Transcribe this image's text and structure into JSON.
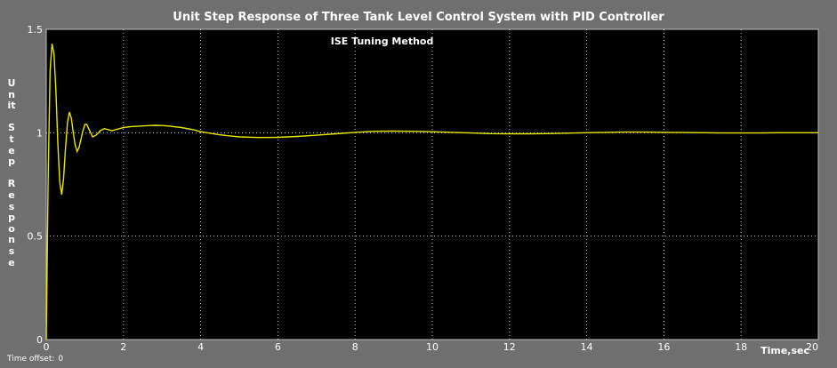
{
  "chart_data": {
    "type": "line",
    "title": "Unit Step Response of Three Tank Level Control System with PID Controller",
    "subtitle": "ISE Tuning Method",
    "xlabel": "Time,sec",
    "ylabel": "Unit Step Response",
    "ylabel_vertical": "U\nn\nit\n\nS\nt\ne\np\n\nR\ne\ns\np\no\nn\ns\ne",
    "xlim": [
      0,
      20
    ],
    "ylim": [
      0,
      1.5
    ],
    "xticks": [
      "0",
      "2",
      "4",
      "6",
      "8",
      "10",
      "12",
      "14",
      "16",
      "18",
      "20"
    ],
    "yticks": [
      "0",
      "0.5",
      "1",
      "1.5"
    ],
    "grid": true,
    "series": [
      {
        "color": "#e6e600",
        "x": [
          0,
          0.05,
          0.1,
          0.15,
          0.2,
          0.25,
          0.3,
          0.35,
          0.4,
          0.45,
          0.5,
          0.55,
          0.6,
          0.65,
          0.7,
          0.75,
          0.8,
          0.85,
          0.9,
          0.95,
          1.0,
          1.05,
          1.1,
          1.15,
          1.2,
          1.3,
          1.4,
          1.5,
          1.6,
          1.7,
          1.8,
          1.9,
          2.0,
          2.2,
          2.4,
          2.6,
          2.8,
          3.0,
          3.2,
          3.5,
          3.8,
          4.0,
          4.5,
          5.0,
          5.5,
          6.0,
          6.5,
          7.0,
          7.5,
          8.0,
          8.5,
          9.0,
          9.5,
          10.0,
          10.5,
          11.0,
          11.5,
          12.0,
          12.5,
          13.0,
          13.5,
          14.0,
          14.5,
          15.0,
          15.5,
          16.0,
          16.5,
          17.0,
          17.5,
          18.0,
          18.5,
          19.0,
          19.5,
          20.0
        ],
        "y": [
          0.0,
          0.8,
          1.3,
          1.43,
          1.38,
          1.2,
          0.95,
          0.76,
          0.7,
          0.78,
          0.93,
          1.05,
          1.1,
          1.07,
          1.0,
          0.94,
          0.91,
          0.93,
          0.97,
          1.01,
          1.04,
          1.04,
          1.02,
          1.0,
          0.98,
          0.99,
          1.01,
          1.02,
          1.015,
          1.01,
          1.015,
          1.02,
          1.025,
          1.03,
          1.032,
          1.034,
          1.036,
          1.035,
          1.032,
          1.025,
          1.015,
          1.005,
          0.99,
          0.98,
          0.977,
          0.978,
          0.982,
          0.988,
          0.995,
          1.002,
          1.007,
          1.008,
          1.007,
          1.005,
          1.002,
          0.999,
          0.996,
          0.995,
          0.995,
          0.996,
          0.998,
          1.0,
          1.002,
          1.003,
          1.003,
          1.002,
          1.001,
          1.0,
          0.999,
          0.999,
          0.999,
          1.0,
          1.0,
          1.0
        ]
      }
    ]
  },
  "footer": {
    "time_offset_label": "Time offset:",
    "time_offset_value": "0"
  },
  "colors": {
    "background": "#6f6f6f",
    "plot_area": "#000000",
    "grid": "#ffffff",
    "line": "#e6e600",
    "text": "#ffffff"
  }
}
